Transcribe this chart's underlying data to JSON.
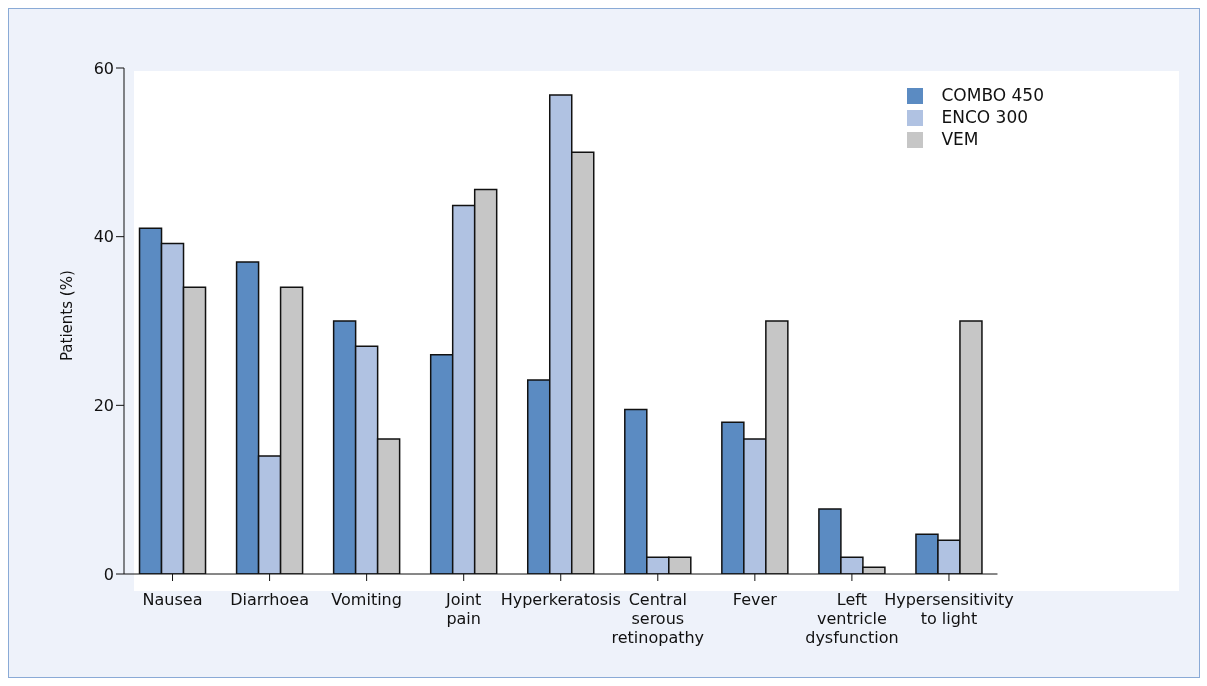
{
  "chart_data": {
    "type": "bar",
    "ylabel": "Patients (%)",
    "categories": [
      "Nausea",
      "Diarrhoea",
      "Vomiting",
      "Joint\npain",
      "Hyperkeratosis",
      "Central\nserous\nretinopathy",
      "Fever",
      "Left\nventricle\ndysfunction",
      "Hypersensitivity\nto light"
    ],
    "series": [
      {
        "name": "COMBO 450",
        "color": "#5b8bc2",
        "values": [
          41,
          37,
          30,
          26,
          23,
          19.5,
          18,
          7.7,
          4.7
        ]
      },
      {
        "name": "ENCO 300",
        "color": "#b0c2e2",
        "values": [
          39.2,
          14,
          27,
          43.7,
          56.8,
          2,
          16,
          2,
          4
        ]
      },
      {
        "name": "VEM",
        "color": "#c6c6c6",
        "values": [
          34,
          34,
          16,
          45.6,
          50,
          2,
          30,
          0.8,
          30
        ]
      }
    ],
    "ylim": [
      0,
      60
    ],
    "yticks": [
      0,
      20,
      40,
      60
    ],
    "grid": false,
    "legend": "top right"
  }
}
